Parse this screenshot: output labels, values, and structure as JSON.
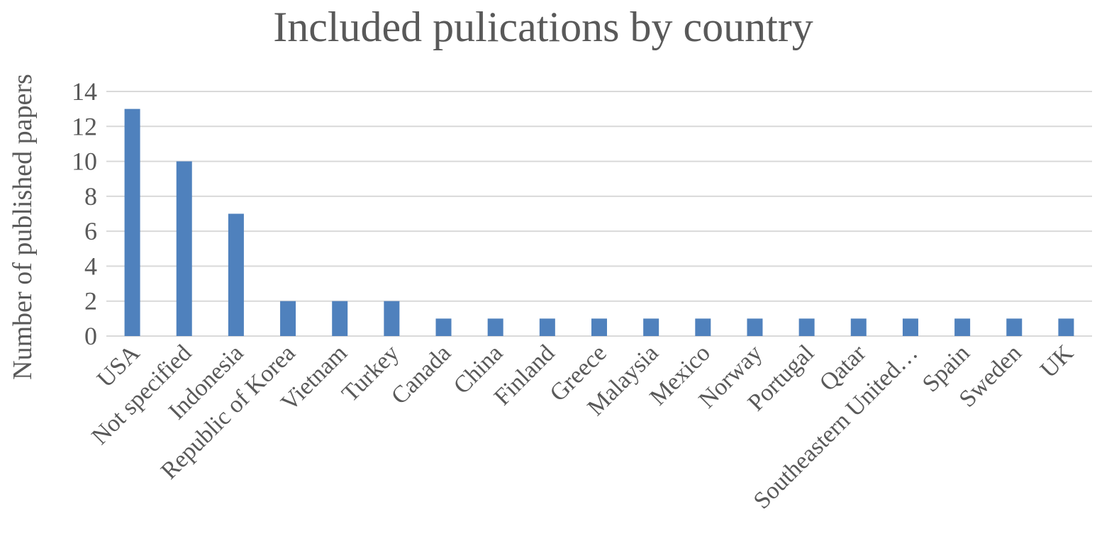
{
  "chart_data": {
    "type": "bar",
    "title": "Included pulications by country",
    "xlabel": "",
    "ylabel": "Number of published papers",
    "categories": [
      "USA",
      "Not specified",
      "Indonesia",
      "Republic of Korea",
      "Vietnam",
      "Turkey",
      "Canada",
      "China",
      "Finland",
      "Greece",
      "Malaysia",
      "Mexico",
      "Norway",
      "Portugal",
      "Qatar",
      "Southeastern United…",
      "Spain",
      "Sweden",
      "UK"
    ],
    "values": [
      13,
      10,
      7,
      2,
      2,
      2,
      1,
      1,
      1,
      1,
      1,
      1,
      1,
      1,
      1,
      1,
      1,
      1,
      1
    ],
    "ylim": [
      0,
      14
    ],
    "yticks": [
      0,
      2,
      4,
      6,
      8,
      10,
      12,
      14
    ],
    "grid": true,
    "legend": "none",
    "bar_color": "#4f81bd"
  }
}
